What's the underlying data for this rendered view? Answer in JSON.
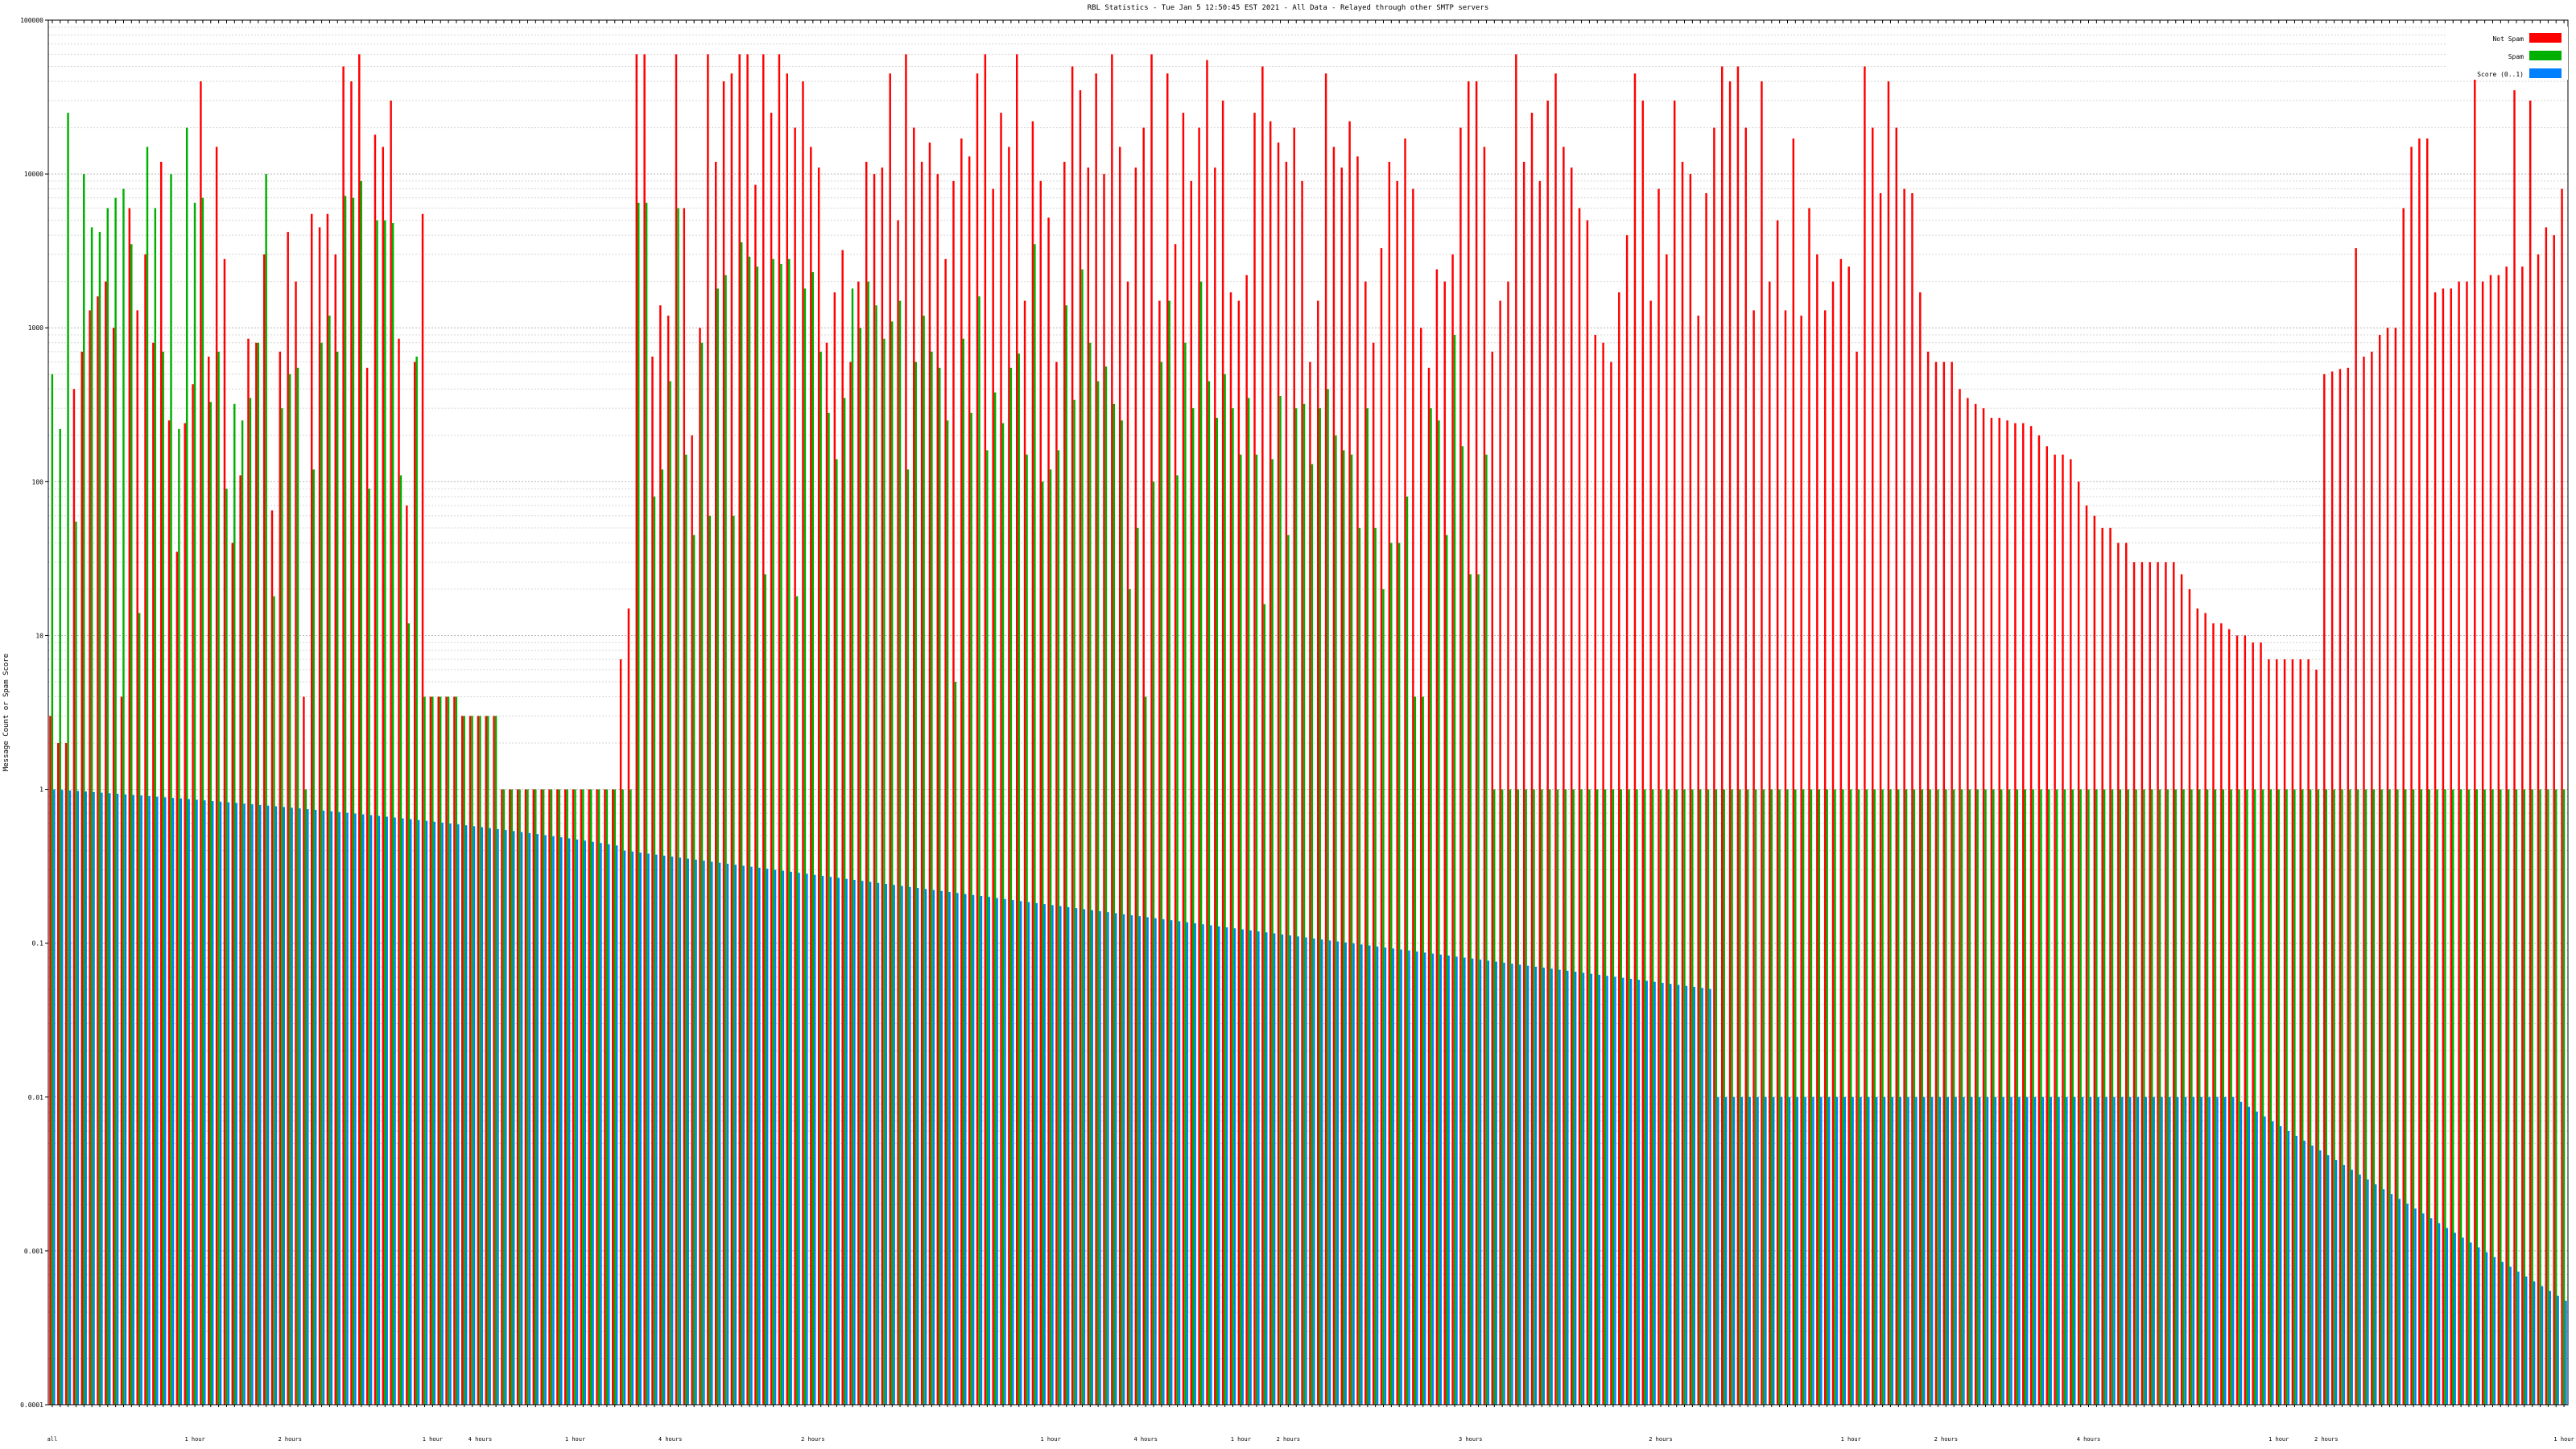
{
  "chart_data": {
    "type": "bar",
    "title": "RBL Statistics - Tue Jan  5 12:50:45 EST 2021 - All Data - Relayed through other SMTP servers",
    "ylabel": "Message Count or Spam Score",
    "xlabel": "",
    "yscale": "log",
    "ylim": [
      0.0001,
      100000
    ],
    "yticks": [
      {
        "value": 100000,
        "label": "100000"
      },
      {
        "value": 10000,
        "label": "10000"
      },
      {
        "value": 1000,
        "label": "1000"
      },
      {
        "value": 100,
        "label": "100"
      },
      {
        "value": 10,
        "label": "10"
      },
      {
        "value": 1,
        "label": "1"
      },
      {
        "value": 0.1,
        "label": "0.1"
      },
      {
        "value": 0.01,
        "label": "0.01"
      },
      {
        "value": 0.001,
        "label": "0.001"
      },
      {
        "value": 0.0001,
        "label": "0.0001"
      }
    ],
    "grid": true,
    "legend_position": "top-right",
    "legend": [
      {
        "name": "Not Spam",
        "color": "#ff0000"
      },
      {
        "name": "Spam",
        "color": "#00b000"
      },
      {
        "name": "Score (0..1)",
        "color": "#0080ff"
      }
    ],
    "category_labels_row1": [
      "all",
      "",
      "",
      "1 hour",
      "",
      "2 hours",
      "",
      "",
      "1 hour",
      "4 hours",
      "",
      "1 hour",
      "",
      "4 hours",
      "",
      "",
      "2 hours",
      "",
      "",
      "",
      "",
      "1 hour",
      "",
      "4 hours",
      "",
      "1 hour",
      "2 hours",
      "",
      "",
      "",
      "3 hours",
      "",
      "",
      "",
      "2 hours",
      "",
      "",
      "",
      "1 hour",
      "",
      "2 hours",
      "",
      "",
      "4 hours",
      "",
      "",
      "",
      "1 hour",
      "2 hours",
      "",
      "",
      "",
      "",
      "1 hour"
    ],
    "series": [
      {
        "name": "Not Spam",
        "color": "#ff0000",
        "values": [
          3,
          2,
          2,
          400,
          700,
          1300,
          1600,
          2000,
          1000,
          4,
          6000,
          1300,
          3000,
          800,
          12000,
          250,
          35,
          240,
          430,
          40000,
          650,
          15000,
          2800,
          40,
          110,
          850,
          800,
          3000,
          65,
          700,
          4200,
          2000,
          4,
          5500,
          4500,
          5500,
          3000,
          50000,
          40000,
          60000,
          550,
          18000,
          15000,
          30000,
          850,
          70,
          600,
          5500,
          4,
          4,
          4,
          4,
          3,
          3,
          3,
          3,
          3,
          1,
          1,
          1,
          1,
          1,
          1,
          1,
          1,
          1,
          1,
          1,
          1,
          1,
          1,
          1,
          7,
          15,
          60000,
          60000,
          650,
          1400,
          1200,
          60000,
          6000,
          200,
          1000,
          60000,
          12000,
          40000,
          45000,
          60000,
          60000,
          8500,
          60000,
          25000,
          60000,
          45000,
          20000,
          40000,
          15000,
          11000,
          800,
          1700,
          3200,
          600,
          2000,
          12000,
          10000,
          11000,
          45000,
          5000,
          60000,
          20000,
          12000,
          16000,
          10000,
          2800,
          9000,
          17000,
          13000,
          45000,
          60000,
          8000,
          25000,
          15000,
          60000,
          1500,
          22000,
          9000,
          5200,
          600,
          12000,
          50000,
          35000,
          11000,
          45000,
          10000,
          60000,
          15000,
          2000,
          11000,
          20000,
          60000,
          1500,
          45000,
          3500,
          25000,
          9000,
          20000,
          55000,
          11000,
          30000,
          1700,
          1500,
          2200,
          25000,
          50000,
          22000,
          16000,
          12000,
          20000,
          9000,
          600,
          1500,
          45000,
          15000,
          11000,
          22000,
          13000,
          2000,
          800,
          3300,
          12000,
          9000,
          17000,
          8000,
          1000,
          550,
          2400,
          2000,
          3000,
          20000,
          40000,
          40000,
          15000,
          700,
          1500,
          2000,
          60000,
          12000,
          25000,
          9000,
          30000,
          45000,
          15000,
          11000,
          6000,
          5000,
          900,
          800,
          600,
          1700,
          4000,
          45000,
          30000,
          1500,
          8000,
          3000,
          30000,
          12000,
          10000,
          1200,
          7500,
          20000,
          50000,
          40000,
          50000,
          20000,
          1300,
          40000,
          2000,
          5000,
          1300,
          17000,
          1200,
          6000,
          3000,
          1300,
          2000,
          2800,
          2500,
          700,
          50000,
          20000,
          7500,
          40000,
          20000,
          8000,
          7500,
          1700,
          700,
          600,
          600,
          600,
          400,
          350,
          320,
          300,
          260,
          260,
          250,
          240,
          240,
          230,
          200,
          170,
          150,
          150,
          140,
          100,
          70,
          60,
          50,
          50,
          40,
          40,
          30,
          30,
          30,
          30,
          30,
          30,
          25,
          20,
          15,
          14,
          12,
          12,
          11,
          10,
          10,
          9,
          9,
          7,
          7,
          7,
          7,
          7,
          7,
          6,
          500,
          520,
          540,
          550,
          3300,
          650,
          700,
          900,
          1000,
          1000,
          6000,
          15000,
          17000,
          17000,
          1700,
          1800,
          1800,
          2000,
          2000,
          60000,
          2000,
          2200,
          2200,
          2500,
          35000,
          2500,
          30000,
          3000,
          4500,
          4000,
          8000
        ]
      },
      {
        "name": "Spam",
        "color": "#00b000",
        "values": [
          500,
          220,
          25000,
          55,
          10000,
          4500,
          4200,
          6000,
          7000,
          8000,
          3500,
          14,
          15000,
          6000,
          700,
          10000,
          220,
          20000,
          6500,
          7000,
          330,
          700,
          90,
          320,
          250,
          350,
          800,
          10000,
          18,
          300,
          500,
          550,
          1,
          120,
          800,
          1200,
          700,
          7200,
          7000,
          9000,
          90,
          5000,
          5000,
          4800,
          110,
          12,
          650,
          4,
          4,
          4,
          4,
          4,
          3,
          3,
          3,
          3,
          3,
          1,
          1,
          1,
          1,
          1,
          1,
          1,
          1,
          1,
          1,
          1,
          1,
          1,
          1,
          1,
          1,
          1,
          6500,
          6500,
          80,
          120,
          450,
          6000,
          150,
          45,
          800,
          60,
          1800,
          2200,
          60,
          3600,
          2900,
          2500,
          25,
          2800,
          2600,
          2800,
          18,
          1800,
          2300,
          700,
          280,
          140,
          350,
          1800,
          1000,
          2000,
          1400,
          850,
          1100,
          1500,
          120,
          600,
          1200,
          700,
          550,
          250,
          5,
          850,
          280,
          1600,
          160,
          380,
          240,
          550,
          680,
          150,
          3500,
          100,
          120,
          160,
          1400,
          340,
          2400,
          800,
          450,
          560,
          320,
          250,
          20,
          50,
          4,
          100,
          600,
          1500,
          110,
          800,
          300,
          2000,
          450,
          260,
          500,
          300,
          150,
          350,
          150,
          16,
          140,
          360,
          45,
          300,
          320,
          130,
          300,
          400,
          200,
          160,
          150,
          50,
          300,
          50,
          20,
          40,
          40,
          80,
          4,
          4,
          300,
          250,
          45,
          900,
          170,
          25,
          25,
          150,
          1,
          1,
          1,
          1,
          1,
          1,
          1,
          1,
          1,
          1,
          1,
          1,
          1,
          1,
          1,
          1,
          1,
          1,
          1,
          1,
          1,
          1,
          1,
          1,
          1,
          1,
          1,
          1,
          1,
          1,
          1,
          1,
          1,
          1,
          1,
          1,
          1,
          1,
          1,
          1,
          1,
          1,
          1,
          1,
          1,
          1,
          1,
          1,
          1,
          1,
          1,
          1,
          1,
          1,
          1,
          1,
          1,
          1,
          1,
          1,
          1,
          1,
          1,
          1,
          1,
          1,
          1,
          1,
          1,
          1,
          1,
          1,
          1,
          1,
          1,
          1,
          1,
          1,
          1,
          1,
          1,
          1,
          1,
          1,
          1,
          1,
          1,
          1,
          1,
          1,
          1,
          1,
          1,
          1,
          1,
          1,
          1,
          1,
          1,
          1,
          1,
          1,
          1,
          1,
          1,
          1,
          1,
          1,
          1,
          1,
          1,
          1,
          1,
          1,
          1,
          1,
          1,
          1,
          1,
          1,
          1,
          1,
          1,
          1,
          1,
          1,
          1,
          1,
          1,
          1,
          1,
          1,
          1,
          1,
          1,
          1,
          1,
          1,
          1,
          1,
          1,
          1,
          1,
          1,
          1,
          1,
          1,
          1,
          1,
          1,
          1,
          1,
          1,
          1,
          1,
          1,
          1,
          1,
          1,
          1,
          1,
          1,
          1,
          1,
          1,
          1,
          1,
          1,
          1,
          1,
          1,
          1,
          1,
          1,
          1,
          1,
          1,
          1,
          1,
          1,
          1,
          1,
          1,
          1,
          1
        ]
      },
      {
        "name": "Score (0..1)",
        "color": "#0080ff",
        "values": []
      }
    ]
  }
}
